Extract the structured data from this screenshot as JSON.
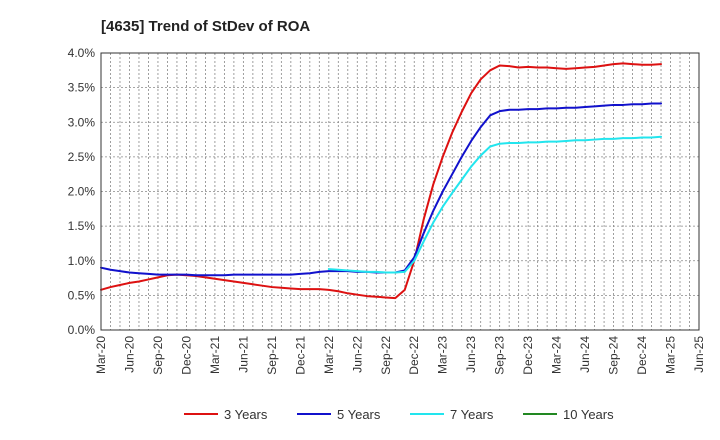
{
  "chart_data": {
    "type": "line",
    "title": "[4635]  Trend of StDev of ROA",
    "xlabel": "",
    "ylabel": "",
    "x_ticks": [
      "Mar-20",
      "Jun-20",
      "Sep-20",
      "Dec-20",
      "Mar-21",
      "Jun-21",
      "Sep-21",
      "Dec-21",
      "Mar-22",
      "Jun-22",
      "Sep-22",
      "Dec-22",
      "Mar-23",
      "Jun-23",
      "Sep-23",
      "Dec-23",
      "Mar-24",
      "Jun-24",
      "Sep-24",
      "Dec-24",
      "Mar-25",
      "Jun-25"
    ],
    "y_ticks": [
      "0.0%",
      "0.5%",
      "1.0%",
      "1.5%",
      "2.0%",
      "2.5%",
      "3.0%",
      "3.5%",
      "4.0%"
    ],
    "ylim": [
      0,
      4.0
    ],
    "y_unit": "%",
    "grid": true,
    "legend_position": "bottom",
    "x_unit_note": "x values are month index from Mar-20 (0 = Mar-20, 3 = Jun-20, ...)",
    "series": [
      {
        "name": "3 Years",
        "color": "#dd1111",
        "points": [
          [
            0,
            0.58
          ],
          [
            1,
            0.62
          ],
          [
            2,
            0.65
          ],
          [
            3,
            0.68
          ],
          [
            4,
            0.7
          ],
          [
            5,
            0.73
          ],
          [
            6,
            0.76
          ],
          [
            7,
            0.79
          ],
          [
            8,
            0.8
          ],
          [
            9,
            0.79
          ],
          [
            10,
            0.78
          ],
          [
            11,
            0.76
          ],
          [
            12,
            0.74
          ],
          [
            13,
            0.72
          ],
          [
            14,
            0.7
          ],
          [
            15,
            0.68
          ],
          [
            16,
            0.66
          ],
          [
            17,
            0.64
          ],
          [
            18,
            0.62
          ],
          [
            19,
            0.61
          ],
          [
            20,
            0.6
          ],
          [
            21,
            0.59
          ],
          [
            22,
            0.59
          ],
          [
            23,
            0.59
          ],
          [
            24,
            0.58
          ],
          [
            25,
            0.56
          ],
          [
            26,
            0.53
          ],
          [
            27,
            0.51
          ],
          [
            28,
            0.49
          ],
          [
            29,
            0.48
          ],
          [
            30,
            0.47
          ],
          [
            31,
            0.46
          ],
          [
            32,
            0.58
          ],
          [
            33,
            1.0
          ],
          [
            34,
            1.6
          ],
          [
            35,
            2.1
          ],
          [
            36,
            2.5
          ],
          [
            37,
            2.85
          ],
          [
            38,
            3.15
          ],
          [
            39,
            3.42
          ],
          [
            40,
            3.62
          ],
          [
            41,
            3.75
          ],
          [
            42,
            3.82
          ],
          [
            43,
            3.81
          ],
          [
            44,
            3.79
          ],
          [
            45,
            3.8
          ],
          [
            46,
            3.79
          ],
          [
            47,
            3.79
          ],
          [
            48,
            3.78
          ],
          [
            49,
            3.77
          ],
          [
            50,
            3.78
          ],
          [
            51,
            3.79
          ],
          [
            52,
            3.8
          ],
          [
            53,
            3.82
          ],
          [
            54,
            3.84
          ],
          [
            55,
            3.85
          ],
          [
            56,
            3.84
          ],
          [
            57,
            3.83
          ],
          [
            58,
            3.83
          ],
          [
            59,
            3.84
          ]
        ]
      },
      {
        "name": "5 Years",
        "color": "#1111cc",
        "points": [
          [
            0,
            0.9
          ],
          [
            1,
            0.87
          ],
          [
            2,
            0.85
          ],
          [
            3,
            0.83
          ],
          [
            4,
            0.82
          ],
          [
            5,
            0.81
          ],
          [
            6,
            0.8
          ],
          [
            7,
            0.8
          ],
          [
            8,
            0.8
          ],
          [
            9,
            0.8
          ],
          [
            10,
            0.79
          ],
          [
            11,
            0.79
          ],
          [
            12,
            0.79
          ],
          [
            13,
            0.79
          ],
          [
            14,
            0.8
          ],
          [
            15,
            0.8
          ],
          [
            16,
            0.8
          ],
          [
            17,
            0.8
          ],
          [
            18,
            0.8
          ],
          [
            19,
            0.8
          ],
          [
            20,
            0.8
          ],
          [
            21,
            0.81
          ],
          [
            22,
            0.82
          ],
          [
            23,
            0.84
          ],
          [
            24,
            0.85
          ],
          [
            25,
            0.85
          ],
          [
            26,
            0.85
          ],
          [
            27,
            0.84
          ],
          [
            28,
            0.84
          ],
          [
            29,
            0.83
          ],
          [
            30,
            0.83
          ],
          [
            31,
            0.83
          ],
          [
            32,
            0.86
          ],
          [
            33,
            1.05
          ],
          [
            34,
            1.4
          ],
          [
            35,
            1.72
          ],
          [
            36,
            2.0
          ],
          [
            37,
            2.25
          ],
          [
            38,
            2.5
          ],
          [
            39,
            2.73
          ],
          [
            40,
            2.93
          ],
          [
            41,
            3.1
          ],
          [
            42,
            3.16
          ],
          [
            43,
            3.18
          ],
          [
            44,
            3.18
          ],
          [
            45,
            3.19
          ],
          [
            46,
            3.19
          ],
          [
            47,
            3.2
          ],
          [
            48,
            3.2
          ],
          [
            49,
            3.21
          ],
          [
            50,
            3.21
          ],
          [
            51,
            3.22
          ],
          [
            52,
            3.23
          ],
          [
            53,
            3.24
          ],
          [
            54,
            3.25
          ],
          [
            55,
            3.25
          ],
          [
            56,
            3.26
          ],
          [
            57,
            3.26
          ],
          [
            58,
            3.27
          ],
          [
            59,
            3.27
          ]
        ]
      },
      {
        "name": "7 Years",
        "color": "#22e5ee",
        "points": [
          [
            24,
            0.88
          ],
          [
            25,
            0.87
          ],
          [
            26,
            0.86
          ],
          [
            27,
            0.85
          ],
          [
            28,
            0.84
          ],
          [
            29,
            0.84
          ],
          [
            30,
            0.83
          ],
          [
            31,
            0.83
          ],
          [
            32,
            0.84
          ],
          [
            33,
            1.0
          ],
          [
            34,
            1.28
          ],
          [
            35,
            1.55
          ],
          [
            36,
            1.78
          ],
          [
            37,
            1.98
          ],
          [
            38,
            2.17
          ],
          [
            39,
            2.36
          ],
          [
            40,
            2.52
          ],
          [
            41,
            2.65
          ],
          [
            42,
            2.69
          ],
          [
            43,
            2.7
          ],
          [
            44,
            2.7
          ],
          [
            45,
            2.71
          ],
          [
            46,
            2.71
          ],
          [
            47,
            2.72
          ],
          [
            48,
            2.72
          ],
          [
            49,
            2.73
          ],
          [
            50,
            2.74
          ],
          [
            51,
            2.74
          ],
          [
            52,
            2.75
          ],
          [
            53,
            2.76
          ],
          [
            54,
            2.76
          ],
          [
            55,
            2.77
          ],
          [
            56,
            2.77
          ],
          [
            57,
            2.78
          ],
          [
            58,
            2.78
          ],
          [
            59,
            2.79
          ]
        ]
      },
      {
        "name": "10 Years",
        "color": "#228822",
        "points": []
      }
    ]
  }
}
